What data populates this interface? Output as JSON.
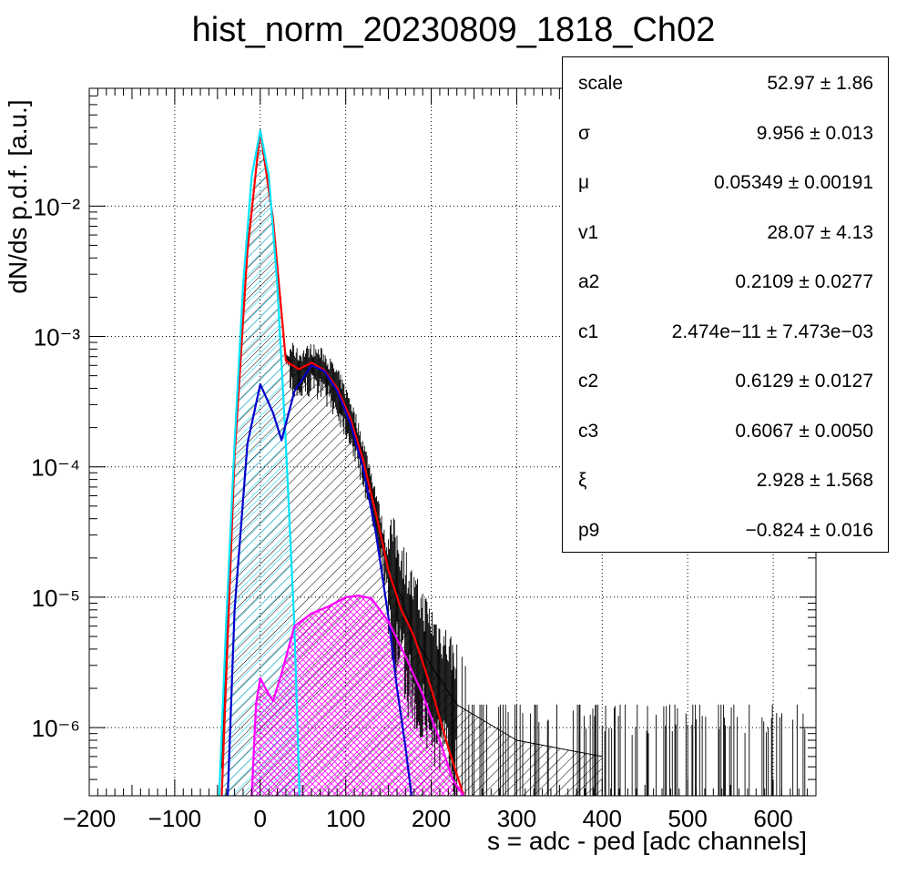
{
  "chart_data": {
    "type": "histogram",
    "title": "hist_norm_20230809_1818_Ch02",
    "xlabel": "s = adc - ped [adc channels]",
    "ylabel": "dN/ds p.d.f. [a.u.]",
    "xlim": [
      -200,
      650
    ],
    "ylim": [
      3e-07,
      0.08
    ],
    "yscale": "log",
    "grid": true,
    "x_ticks": [
      "−200",
      "−100",
      "0",
      "100",
      "200",
      "300",
      "400",
      "500",
      "600"
    ],
    "x_tick_values": [
      -200,
      -100,
      0,
      100,
      200,
      300,
      400,
      500,
      600
    ],
    "y_ticks": [
      "10⁻⁶",
      "10⁻⁵",
      "10⁻⁴",
      "10⁻³",
      "10⁻²"
    ],
    "y_tick_values": [
      1e-06,
      1e-05,
      0.0001,
      0.001,
      0.01
    ],
    "series": [
      {
        "color": "#000000",
        "x": [
          -45,
          -30,
          -15,
          0,
          15,
          30,
          45,
          60,
          75,
          90,
          105,
          120,
          135,
          150,
          165,
          180,
          200,
          230,
          300,
          400
        ],
        "values": [
          5e-07,
          0.00015,
          0.005,
          0.038,
          0.008,
          0.0007,
          0.00055,
          0.00062,
          0.00055,
          0.0004,
          0.00025,
          0.00012,
          5e-05,
          1.6e-05,
          1e-05,
          5e-06,
          3e-06,
          1.5e-06,
          8e-07,
          6e-07
        ]
      },
      {
        "color": "#ff0000",
        "x": [
          -45,
          -30,
          -15,
          0,
          15,
          30,
          45,
          60,
          75,
          90,
          105,
          120,
          135,
          150,
          165,
          180,
          200,
          220,
          238
        ],
        "values": [
          3e-07,
          0.00012,
          0.0045,
          0.038,
          0.008,
          0.00065,
          0.00056,
          0.00063,
          0.00055,
          0.0004,
          0.00024,
          0.000115,
          4.5e-05,
          1.6e-05,
          8e-06,
          5e-06,
          2e-06,
          7e-07,
          3e-07
        ]
      },
      {
        "color": "#00e5ff",
        "x": [
          -48,
          -40,
          -30,
          -20,
          -10,
          0,
          10,
          20,
          30,
          40,
          46
        ],
        "values": [
          3e-07,
          6e-06,
          0.00015,
          0.0025,
          0.017,
          0.038,
          0.017,
          0.0025,
          0.00015,
          6e-06,
          3e-07
        ]
      },
      {
        "color": "#0000cc",
        "x": [
          -38,
          -30,
          -15,
          0,
          15,
          25,
          40,
          60,
          75,
          90,
          105,
          120,
          135,
          150,
          160,
          170,
          177
        ],
        "values": [
          3e-07,
          8e-06,
          0.00015,
          0.00043,
          0.00026,
          0.00016,
          0.00038,
          0.0006,
          0.00054,
          0.00038,
          0.00022,
          0.0001,
          3.2e-05,
          7e-06,
          2e-06,
          7e-07,
          3e-07
        ]
      },
      {
        "color": "#ff00ff",
        "x": [
          -10,
          -5,
          0,
          8,
          15,
          25,
          40,
          60,
          80,
          100,
          115,
          130,
          150,
          170,
          190,
          210,
          225,
          238
        ],
        "values": [
          3e-07,
          1.5e-06,
          2.4e-06,
          1.9e-06,
          1.6e-06,
          2.6e-06,
          6e-06,
          7.5e-06,
          8.5e-06,
          1e-05,
          1.03e-05,
          9.8e-06,
          6.5e-06,
          3.5e-06,
          1.8e-06,
          8e-07,
          4e-07,
          3e-07
        ]
      }
    ],
    "stats": [
      {
        "name": "scale",
        "value": "52.97 ± 1.86"
      },
      {
        "name": "σ",
        "value": "9.956 ± 0.013"
      },
      {
        "name": "μ",
        "value": "0.05349 ± 0.00191"
      },
      {
        "name": "v1",
        "value": "28.07 ± 4.13"
      },
      {
        "name": "a2",
        "value": "0.2109 ± 0.0277"
      },
      {
        "name": "c1",
        "value": "2.474e−11 ± 7.473e−03"
      },
      {
        "name": "c2",
        "value": "0.6129 ± 0.0127"
      },
      {
        "name": "c3",
        "value": "0.6067 ± 0.0050"
      },
      {
        "name": "ξ",
        "value": "2.928 ± 1.568"
      },
      {
        "name": "p9",
        "value": "−0.824 ± 0.016"
      }
    ]
  }
}
